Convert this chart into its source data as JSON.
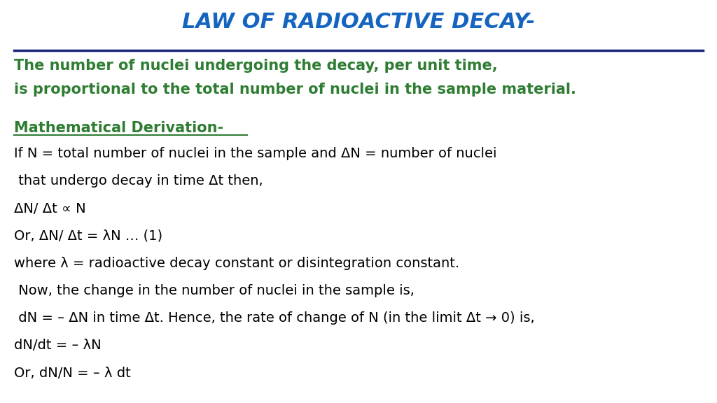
{
  "title": "LAW OF RADIOACTIVE DECAY-",
  "title_color": "#1565C0",
  "title_fontsize": 22,
  "line_color": "#1A237E",
  "green_color": "#2E7D32",
  "black_color": "#000000",
  "bg_color": "#FFFFFF",
  "subtitle_line1": "The number of nuclei undergoing the decay, per unit time,",
  "subtitle_line2": "is proportional to the total number of nuclei in the sample material.",
  "section_header": "Mathematical Derivation-",
  "body_lines": [
    "If N = total number of nuclei in the sample and ΔN = number of nuclei",
    " that undergo decay in time Δt then,",
    "ΔN/ Δt ∝ N",
    "Or, ΔN/ Δt = λN … (1)",
    "where λ = radioactive decay constant or disintegration constant.",
    " Now, the change in the number of nuclei in the sample is,",
    " dN = – ΔN in time Δt. Hence, the rate of change of N (in the limit Δt → 0) is,",
    "dN/dt = – λN",
    "Or, dN/N = – λ dt"
  ]
}
